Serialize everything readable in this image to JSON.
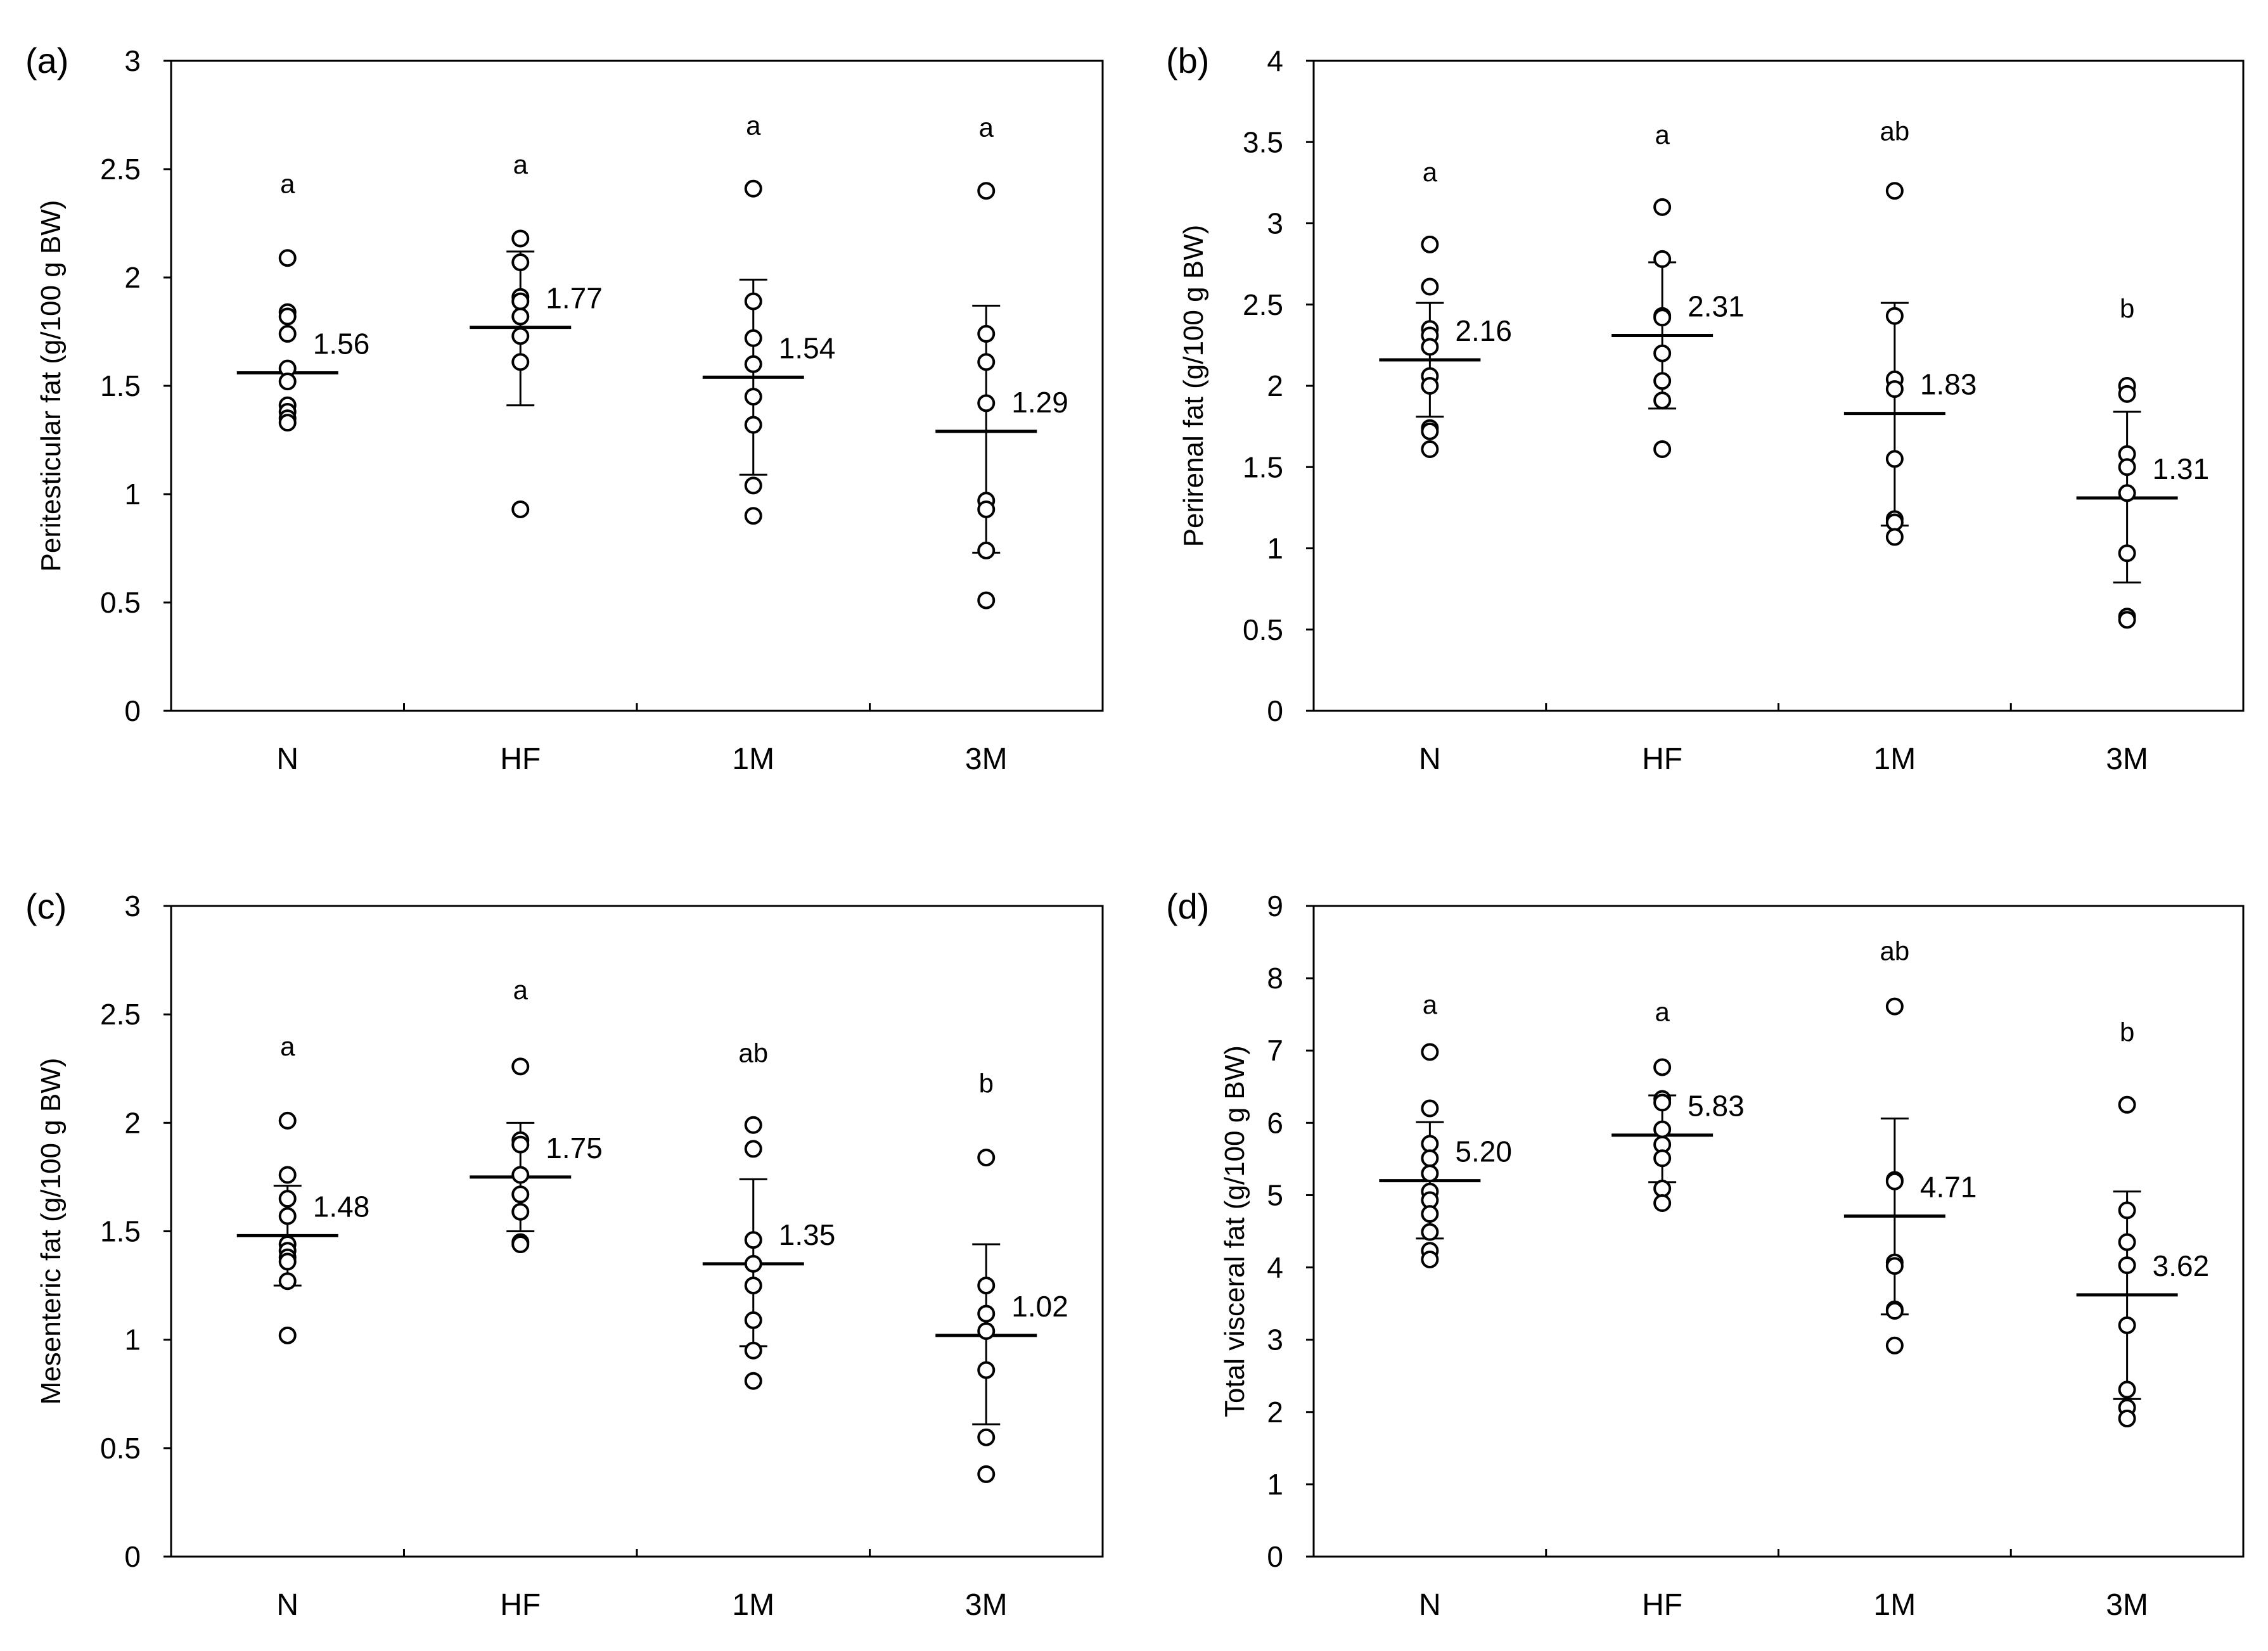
{
  "chart_data": [
    {
      "panel": "(a)",
      "type": "scatter",
      "ylabel": "Peritesticular fat (g/100 g BW)",
      "ylim": [
        0,
        3
      ],
      "ystep": 0.5,
      "ytick_labels": [
        "0",
        "0.5",
        "1",
        "1.5",
        "2",
        "2.5",
        "3"
      ],
      "categories": [
        "N",
        "HF",
        "1M",
        "3M"
      ],
      "groups": [
        {
          "points": [
            2.09,
            1.84,
            1.82,
            1.74,
            1.58,
            1.52,
            1.41,
            1.38,
            1.35,
            1.33
          ],
          "mean": 1.56,
          "mean_label": "1.56",
          "sd_hi": 1.56,
          "sd_lo": 1.56,
          "letter": "a",
          "letter_y": 2.39
        },
        {
          "points": [
            2.18,
            2.07,
            1.91,
            1.89,
            1.82,
            1.73,
            1.61,
            0.93
          ],
          "mean": 1.77,
          "mean_label": "1.77",
          "sd_hi": 2.12,
          "sd_lo": 1.41,
          "letter": "a",
          "letter_y": 2.48
        },
        {
          "points": [
            2.41,
            1.89,
            1.72,
            1.6,
            1.45,
            1.32,
            1.04,
            0.9
          ],
          "mean": 1.54,
          "mean_label": "1.54",
          "sd_hi": 1.99,
          "sd_lo": 1.09,
          "letter": "a",
          "letter_y": 2.66
        },
        {
          "points": [
            2.4,
            1.74,
            1.61,
            1.42,
            0.97,
            0.93,
            0.74,
            0.51
          ],
          "mean": 1.29,
          "mean_label": "1.29",
          "sd_hi": 1.87,
          "sd_lo": 0.73,
          "letter": "a",
          "letter_y": 2.65
        }
      ]
    },
    {
      "panel": "(b)",
      "type": "scatter",
      "ylabel": "Perirenal fat (g/100 g BW)",
      "ylim": [
        0,
        4
      ],
      "ystep": 0.5,
      "ytick_labels": [
        "0",
        "0.5",
        "1",
        "1.5",
        "2",
        "2.5",
        "3",
        "3.5",
        "4"
      ],
      "categories": [
        "N",
        "HF",
        "1M",
        "3M"
      ],
      "groups": [
        {
          "points": [
            2.87,
            2.61,
            2.35,
            2.31,
            2.24,
            2.06,
            2.0,
            1.74,
            1.72,
            1.61
          ],
          "mean": 2.16,
          "mean_label": "2.16",
          "sd_hi": 2.51,
          "sd_lo": 1.81,
          "letter": "a",
          "letter_y": 3.26
        },
        {
          "points": [
            3.1,
            2.78,
            2.43,
            2.42,
            2.2,
            2.03,
            1.91,
            1.61
          ],
          "mean": 2.31,
          "mean_label": "2.31",
          "sd_hi": 2.76,
          "sd_lo": 1.86,
          "letter": "a",
          "letter_y": 3.49
        },
        {
          "points": [
            3.2,
            2.43,
            2.04,
            1.98,
            1.55,
            1.18,
            1.16,
            1.07
          ],
          "mean": 1.83,
          "mean_label": "1.83",
          "sd_hi": 2.51,
          "sd_lo": 1.14,
          "letter": "ab",
          "letter_y": 3.51
        },
        {
          "points": [
            2.0,
            1.95,
            1.58,
            1.5,
            1.34,
            0.97,
            0.58,
            0.56
          ],
          "mean": 1.31,
          "mean_label": "1.31",
          "sd_hi": 1.84,
          "sd_lo": 0.79,
          "letter": "b",
          "letter_y": 2.42
        }
      ]
    },
    {
      "panel": "(c)",
      "type": "scatter",
      "ylabel": "Mesenteric fat (g/100 g BW)",
      "ylim": [
        0,
        3
      ],
      "ystep": 0.5,
      "ytick_labels": [
        "0",
        "0.5",
        "1",
        "1.5",
        "2",
        "2.5",
        "3"
      ],
      "categories": [
        "N",
        "HF",
        "1M",
        "3M"
      ],
      "groups": [
        {
          "points": [
            2.01,
            1.76,
            1.65,
            1.57,
            1.44,
            1.41,
            1.38,
            1.36,
            1.27,
            1.02
          ],
          "mean": 1.48,
          "mean_label": "1.48",
          "sd_hi": 1.71,
          "sd_lo": 1.25,
          "letter": "a",
          "letter_y": 2.31
        },
        {
          "points": [
            2.26,
            1.92,
            1.9,
            1.76,
            1.67,
            1.59,
            1.45,
            1.44
          ],
          "mean": 1.75,
          "mean_label": "1.75",
          "sd_hi": 2.0,
          "sd_lo": 1.5,
          "letter": "a",
          "letter_y": 2.57
        },
        {
          "points": [
            1.99,
            1.88,
            1.46,
            1.35,
            1.25,
            1.09,
            0.95,
            0.81
          ],
          "mean": 1.35,
          "mean_label": "1.35",
          "sd_hi": 1.74,
          "sd_lo": 0.97,
          "letter": "ab",
          "letter_y": 2.28
        },
        {
          "points": [
            1.84,
            1.25,
            1.12,
            1.04,
            0.86,
            0.55,
            0.38
          ],
          "mean": 1.02,
          "mean_label": "1.02",
          "sd_hi": 1.44,
          "sd_lo": 0.61,
          "letter": "b",
          "letter_y": 2.14
        }
      ]
    },
    {
      "panel": "(d)",
      "type": "scatter",
      "ylabel": "Total visceral fat (g/100 g BW)",
      "ylim": [
        0,
        9
      ],
      "ystep": 1,
      "ytick_labels": [
        "0",
        "1",
        "2",
        "3",
        "4",
        "5",
        "6",
        "7",
        "8",
        "9"
      ],
      "categories": [
        "N",
        "HF",
        "1M",
        "3M"
      ],
      "groups": [
        {
          "points": [
            6.98,
            6.2,
            5.71,
            5.51,
            5.3,
            5.05,
            4.93,
            4.74,
            4.49,
            4.23,
            4.11
          ],
          "mean": 5.2,
          "mean_label": "5.20",
          "sd_hi": 6.01,
          "sd_lo": 4.4,
          "letter": "a",
          "letter_y": 7.51
        },
        {
          "points": [
            6.77,
            6.33,
            6.28,
            5.91,
            5.7,
            5.51,
            5.09,
            4.89
          ],
          "mean": 5.83,
          "mean_label": "5.83",
          "sd_hi": 6.38,
          "sd_lo": 5.18,
          "letter": "a",
          "letter_y": 7.41
        },
        {
          "points": [
            7.61,
            5.21,
            5.19,
            4.07,
            4.02,
            3.42,
            3.4,
            2.92
          ],
          "mean": 4.71,
          "mean_label": "4.71",
          "sd_hi": 6.06,
          "sd_lo": 3.35,
          "letter": "ab",
          "letter_y": 8.25
        },
        {
          "points": [
            6.25,
            4.79,
            4.35,
            4.03,
            3.2,
            2.31,
            2.06,
            1.91
          ],
          "mean": 3.62,
          "mean_label": "3.62",
          "sd_hi": 5.05,
          "sd_lo": 2.18,
          "letter": "b",
          "letter_y": 7.13
        }
      ]
    }
  ]
}
